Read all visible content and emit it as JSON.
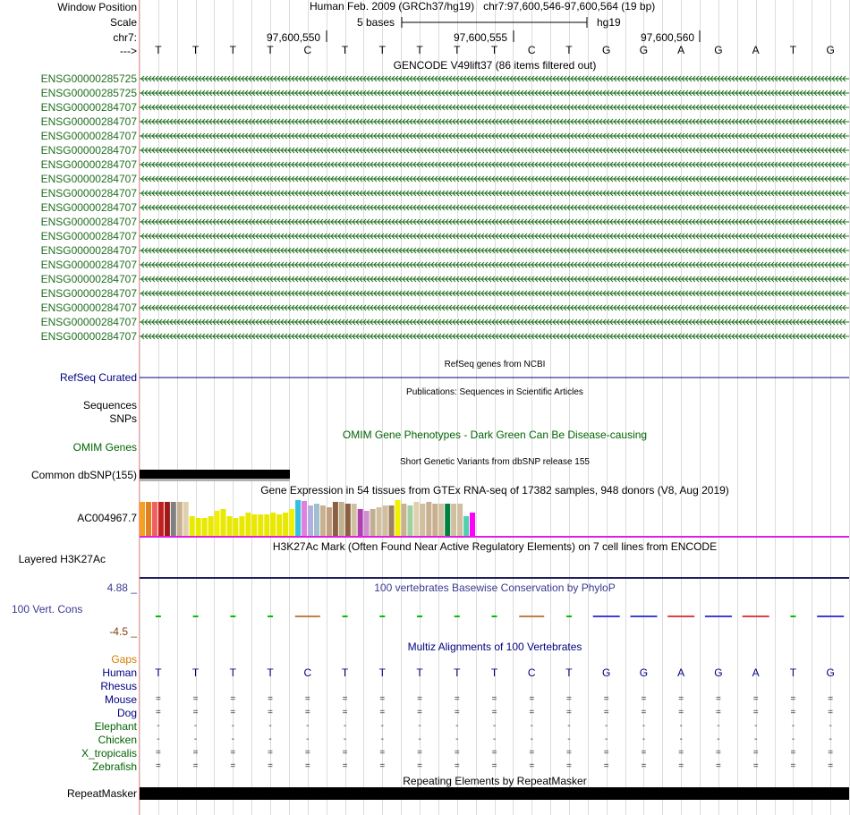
{
  "header": {
    "window_position_label": "Window Position",
    "scale_label": "Scale",
    "chrom_label": "chr7:",
    "strand_label": "--->",
    "assembly_title": "Human Feb. 2009 (GRCh37/hg19)",
    "position": "chr7:97,600,546-97,600,564 (19 bp)",
    "scale_text": "5 bases",
    "db": "hg19",
    "coord_ticks": [
      "97,600,550",
      "97,600,555",
      "97,600,560"
    ]
  },
  "sequence": [
    "T",
    "T",
    "T",
    "T",
    "C",
    "T",
    "T",
    "T",
    "T",
    "T",
    "C",
    "T",
    "G",
    "G",
    "A",
    "G",
    "A",
    "T",
    "G"
  ],
  "gencode": {
    "title": "GENCODE V49lift37 (86 items filtered out)",
    "items": [
      "ENSG00000285725",
      "ENSG00000285725",
      "ENSG00000284707",
      "ENSG00000284707",
      "ENSG00000284707",
      "ENSG00000284707",
      "ENSG00000284707",
      "ENSG00000284707",
      "ENSG00000284707",
      "ENSG00000284707",
      "ENSG00000284707",
      "ENSG00000284707",
      "ENSG00000284707",
      "ENSG00000284707",
      "ENSG00000284707",
      "ENSG00000284707",
      "ENSG00000284707",
      "ENSG00000284707",
      "ENSG00000284707"
    ],
    "color": "#207020"
  },
  "refseq": {
    "title": "RefSeq genes from NCBI",
    "label": "RefSeq Curated"
  },
  "publications": {
    "title": "Publications: Sequences in Scientific Articles",
    "label1": "Sequences",
    "label2": "SNPs"
  },
  "omim": {
    "title": "OMIM Gene Phenotypes - Dark Green Can Be Disease-causing",
    "label": "OMIM Genes"
  },
  "dbsnp": {
    "title": "Short Genetic Variants from dbSNP release 155",
    "label": "Common dbSNP(155)"
  },
  "gtex": {
    "title": "Gene Expression in 54 tissues from GTEx RNA-seq of 17382 samples, 948 donors (V8, Aug 2019)",
    "label": "AC004967.7",
    "bar_colors": [
      "#f4a020",
      "#e08020",
      "#f06060",
      "#c02020",
      "#a01818",
      "#808080",
      "#c8b090",
      "#e0d0b0",
      "#e8e800",
      "#e8e800",
      "#e8e800",
      "#e8e800",
      "#f0f000",
      "#e8e800",
      "#e8e800",
      "#e8e800",
      "#e8e800",
      "#e8e800",
      "#e8e800",
      "#e8e800",
      "#e8e800",
      "#e8e800",
      "#e8e800",
      "#e8e800",
      "#f0f000",
      "#30c0e0",
      "#e080e0",
      "#b0b0e0",
      "#a0c0d0",
      "#c8b090",
      "#c0a080",
      "#8a6040",
      "#c0b090",
      "#8a6040",
      "#d0c0a0",
      "#b040b0",
      "#d090d0",
      "#c0b090",
      "#d0c0a0",
      "#d0c0a0",
      "#a08060",
      "#f0f000",
      "#c8b090",
      "#a0d0a0",
      "#e0d0b0",
      "#d0c0a0",
      "#c8b090",
      "#c8b090",
      "#d0c0a0",
      "#008040",
      "#d0c0a0",
      "#d0c0a0",
      "#50d0b0",
      "#ff00ff"
    ],
    "bar_values": [
      0.95,
      0.95,
      0.95,
      0.95,
      0.95,
      0.95,
      0.95,
      0.95,
      0.55,
      0.5,
      0.5,
      0.55,
      0.7,
      0.75,
      0.55,
      0.5,
      0.55,
      0.65,
      0.6,
      0.6,
      0.6,
      0.65,
      0.6,
      0.65,
      0.75,
      1.0,
      0.98,
      0.85,
      0.9,
      0.85,
      0.8,
      0.95,
      0.95,
      0.9,
      0.9,
      0.75,
      0.7,
      0.75,
      0.8,
      0.85,
      0.85,
      1.0,
      0.9,
      0.85,
      0.95,
      0.9,
      0.95,
      0.9,
      0.9,
      0.9,
      0.9,
      0.9,
      0.55,
      0.65
    ]
  },
  "h3k27ac": {
    "title": "H3K27Ac Mark (Often Found Near Active Regulatory Elements) on 7 cell lines from ENCODE",
    "label": "Layered H3K27Ac"
  },
  "conservation": {
    "title": "100 vertebrates Basewise Conservation by PhyloP",
    "label": "100 Vert. Cons",
    "max_label": "4.88 _",
    "min_label": "-4.5 _"
  },
  "multiz": {
    "title": "Multiz Alignments of 100 Vertebrates",
    "gaps_label": "Gaps",
    "species": [
      {
        "name": "Human",
        "type": "seq"
      },
      {
        "name": "Rhesus",
        "type": "none"
      },
      {
        "name": "Mouse",
        "type": "eq"
      },
      {
        "name": "Dog",
        "type": "eq"
      },
      {
        "name": "Elephant",
        "type": "dash"
      },
      {
        "name": "Chicken",
        "type": "dash"
      },
      {
        "name": "X_tropicalis",
        "type": "eq"
      },
      {
        "name": "Zebrafish",
        "type": "eq"
      }
    ]
  },
  "repeatmasker": {
    "title": "Repeating Elements by RepeatMasker",
    "label": "RepeatMasker"
  }
}
